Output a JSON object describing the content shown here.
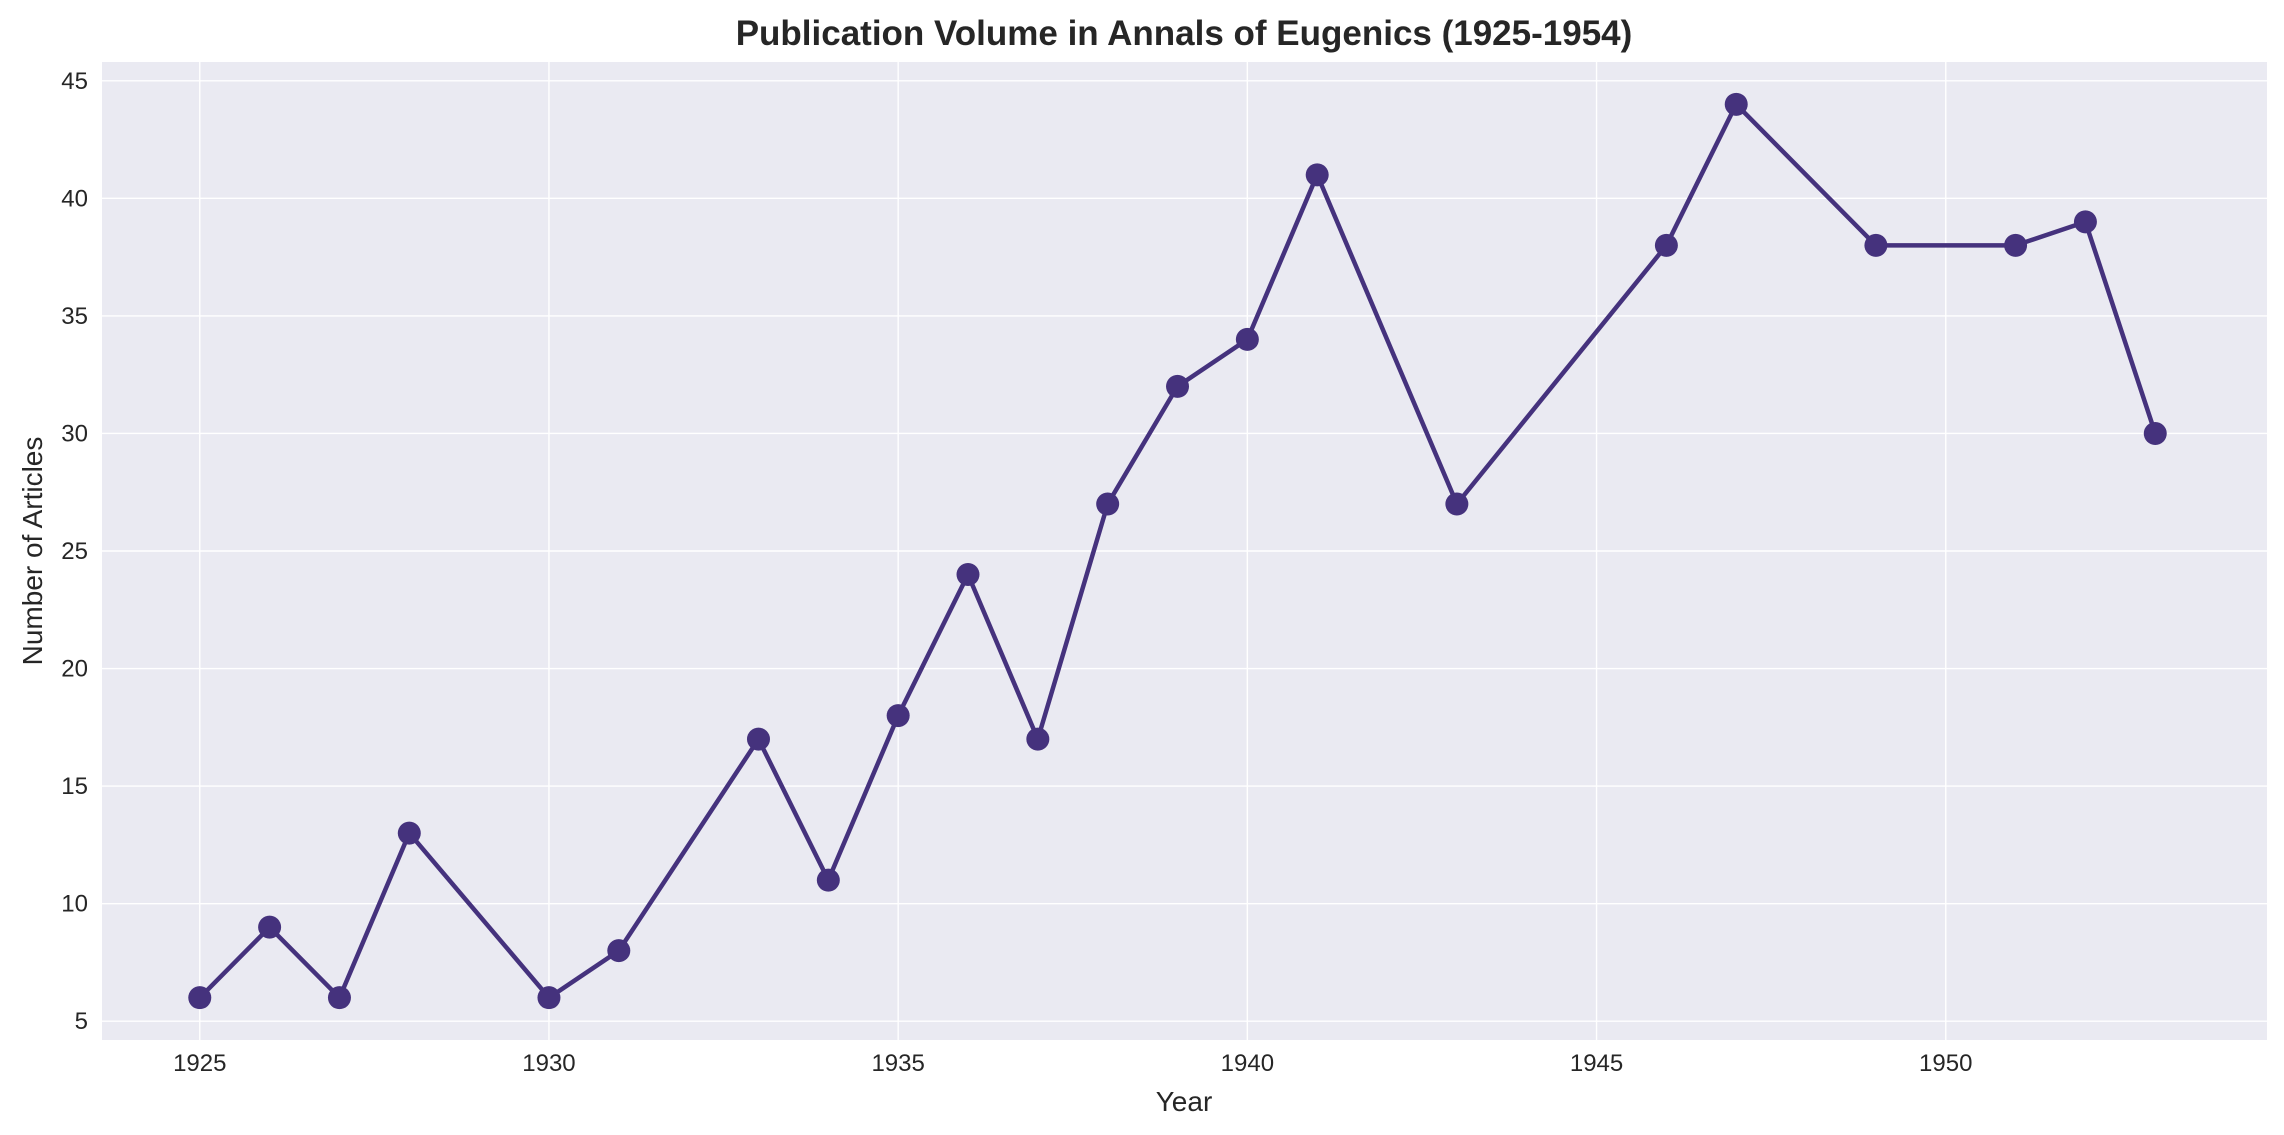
{
  "chart_data": {
    "type": "line",
    "title": "Publication Volume in Annals of Eugenics (1925-1954)",
    "xlabel": "Year",
    "ylabel": "Number of Articles",
    "xlim": [
      1923.6,
      1954.6
    ],
    "ylim": [
      4.2,
      45.8
    ],
    "xticks": [
      1925,
      1930,
      1935,
      1940,
      1945,
      1950
    ],
    "yticks": [
      5,
      10,
      15,
      20,
      25,
      30,
      35,
      40,
      45
    ],
    "grid": true,
    "legend": "none",
    "series": [
      {
        "x": [
          1925,
          1926,
          1927,
          1928,
          1930,
          1931,
          1933,
          1934,
          1935,
          1936,
          1937,
          1938,
          1939,
          1940,
          1941,
          1943,
          1946,
          1947,
          1949,
          1951,
          1952,
          1953
        ],
        "values": [
          6,
          9,
          6,
          13,
          6,
          8,
          17,
          11,
          18,
          24,
          17,
          27,
          32,
          34,
          41,
          27,
          38,
          44,
          38,
          38,
          39,
          30
        ],
        "color": "#45327d"
      }
    ],
    "colors": {
      "plot_background": "#eaeaf2",
      "grid": "#ffffff",
      "line": "#45327d",
      "text": "#262626"
    }
  }
}
